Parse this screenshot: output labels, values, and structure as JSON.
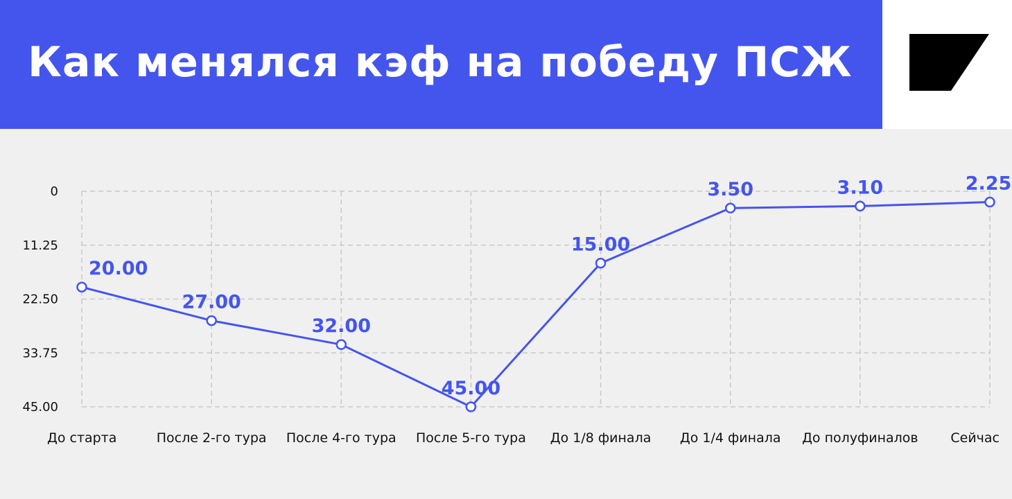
{
  "colors": {
    "header_bg": "#4455ee",
    "line": "#4455ee",
    "labels": "#4455ee",
    "background": "#f0f0f0",
    "grid": "#c8c8c8",
    "logo": "#000000"
  },
  "logo": {
    "icon": "logo-icon"
  },
  "chart_data": {
    "type": "line",
    "title": "Как менялся кэф на победу ПСЖ",
    "categories": [
      "До старта",
      "После 2-го тура",
      "После 4-го тура",
      "После 5-го тура",
      "До 1/8 финала",
      "До 1/4 финала",
      "До полуфиналов",
      "Сейчас"
    ],
    "values": [
      20.0,
      27.0,
      32.0,
      45.0,
      15.0,
      3.5,
      3.1,
      2.25
    ],
    "data_labels": [
      "20.00",
      "27.00",
      "32.00",
      "45.00",
      "15.00",
      "3.50",
      "3.10",
      "2.25"
    ],
    "y_ticks": [
      "0",
      "11.25",
      "22.50",
      "33.75",
      "45.00"
    ],
    "y_tick_values": [
      0,
      11.25,
      22.5,
      33.75,
      45
    ],
    "ylim": [
      0,
      45
    ],
    "y_inverted": true,
    "grid": true,
    "xlabel": "",
    "ylabel": ""
  }
}
